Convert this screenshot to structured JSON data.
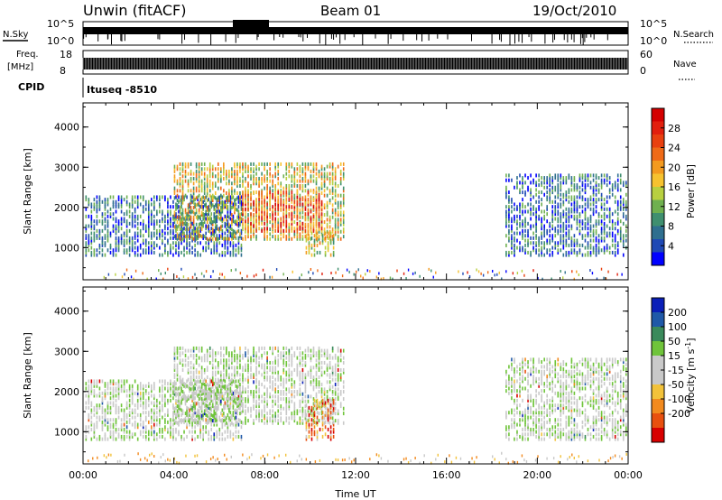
{
  "header": {
    "station": "Unwin (fitACF)",
    "beam": "Beam 01",
    "date": "19/Oct/2010"
  },
  "panels": {
    "sky": {
      "left_label": "N.Sky",
      "right_label": "N.Search",
      "left_ticks": [
        "10^5",
        "10^0"
      ],
      "right_ticks": [
        "10^5",
        "10^0"
      ]
    },
    "freq": {
      "left_label_1": "Freq.",
      "left_label_2": "[MHz]",
      "left_ticks": [
        "18",
        "8"
      ],
      "right_label": "Nave",
      "right_ticks": [
        "60",
        "0"
      ]
    },
    "cpid": {
      "left_label": "CPID",
      "value_label": "Ituseq -8510"
    }
  },
  "colors": {
    "power_scale": [
      "#0000ff",
      "#1f49b5",
      "#2f6f8f",
      "#3f8f6f",
      "#6fb04f",
      "#b8d040",
      "#f6c22f",
      "#f39a1f",
      "#ef6a17",
      "#e9400f",
      "#e21f0d",
      "#d40000"
    ],
    "velocity_scale": [
      "#0a1fb8",
      "#1f59a8",
      "#3a8a5b",
      "#6fc43a",
      "#c9c9c9",
      "#c8c8c8",
      "#f2c23a",
      "#f28a1e",
      "#e8500f",
      "#d80000"
    ]
  },
  "chart_data": [
    {
      "type": "heatmap",
      "title": "",
      "xlabel": "Time UT",
      "ylabel": "Slant Range [km]",
      "x_ticks": [
        "00:00",
        "04:00",
        "08:00",
        "12:00",
        "16:00",
        "20:00",
        "00:00"
      ],
      "y_ticks": [
        "1000",
        "2000",
        "3000",
        "4000"
      ],
      "ylim": [
        200,
        4600
      ],
      "xlim_hours": [
        0,
        24
      ],
      "colorbar_label": "Power [dB]",
      "colorbar_ticks": [
        "4",
        "8",
        "12",
        "16",
        "20",
        "24",
        "28"
      ],
      "colorbar_range": [
        0,
        32
      ],
      "regions": [
        {
          "t0": 0.1,
          "t1": 7.0,
          "r0": 800,
          "r1": 2300,
          "level": "low"
        },
        {
          "t0": 4.0,
          "t1": 11.5,
          "r0": 1200,
          "r1": 3100,
          "level": "mid"
        },
        {
          "t0": 7.0,
          "t1": 10.5,
          "r0": 1400,
          "r1": 2400,
          "level": "high"
        },
        {
          "t0": 9.8,
          "t1": 11.0,
          "r0": 800,
          "r1": 1400,
          "level": "mid"
        },
        {
          "t0": 18.6,
          "t1": 24.0,
          "r0": 800,
          "r1": 2800,
          "level": "low"
        }
      ]
    },
    {
      "type": "heatmap",
      "title": "",
      "xlabel": "Time UT",
      "ylabel": "Slant Range [km]",
      "x_ticks": [
        "00:00",
        "04:00",
        "08:00",
        "12:00",
        "16:00",
        "20:00",
        "00:00"
      ],
      "y_ticks": [
        "1000",
        "2000",
        "3000",
        "4000"
      ],
      "ylim": [
        200,
        4600
      ],
      "xlim_hours": [
        0,
        24
      ],
      "colorbar_label": "Velocity [m s^-1]",
      "colorbar_ticks": [
        "200",
        "100",
        "50",
        "15",
        "-15",
        "-50",
        "-100",
        "-200"
      ],
      "colorbar_range": [
        -250,
        250
      ],
      "regions": [
        {
          "t0": 0.1,
          "t1": 7.0,
          "r0": 800,
          "r1": 2300,
          "velocity": "near-zero"
        },
        {
          "t0": 4.0,
          "t1": 11.5,
          "r0": 1200,
          "r1": 3100,
          "velocity": "near-zero"
        },
        {
          "t0": 9.8,
          "t1": 11.0,
          "r0": 800,
          "r1": 1800,
          "velocity": "negative"
        },
        {
          "t0": 18.6,
          "t1": 24.0,
          "r0": 800,
          "r1": 2800,
          "velocity": "near-zero"
        }
      ]
    }
  ]
}
